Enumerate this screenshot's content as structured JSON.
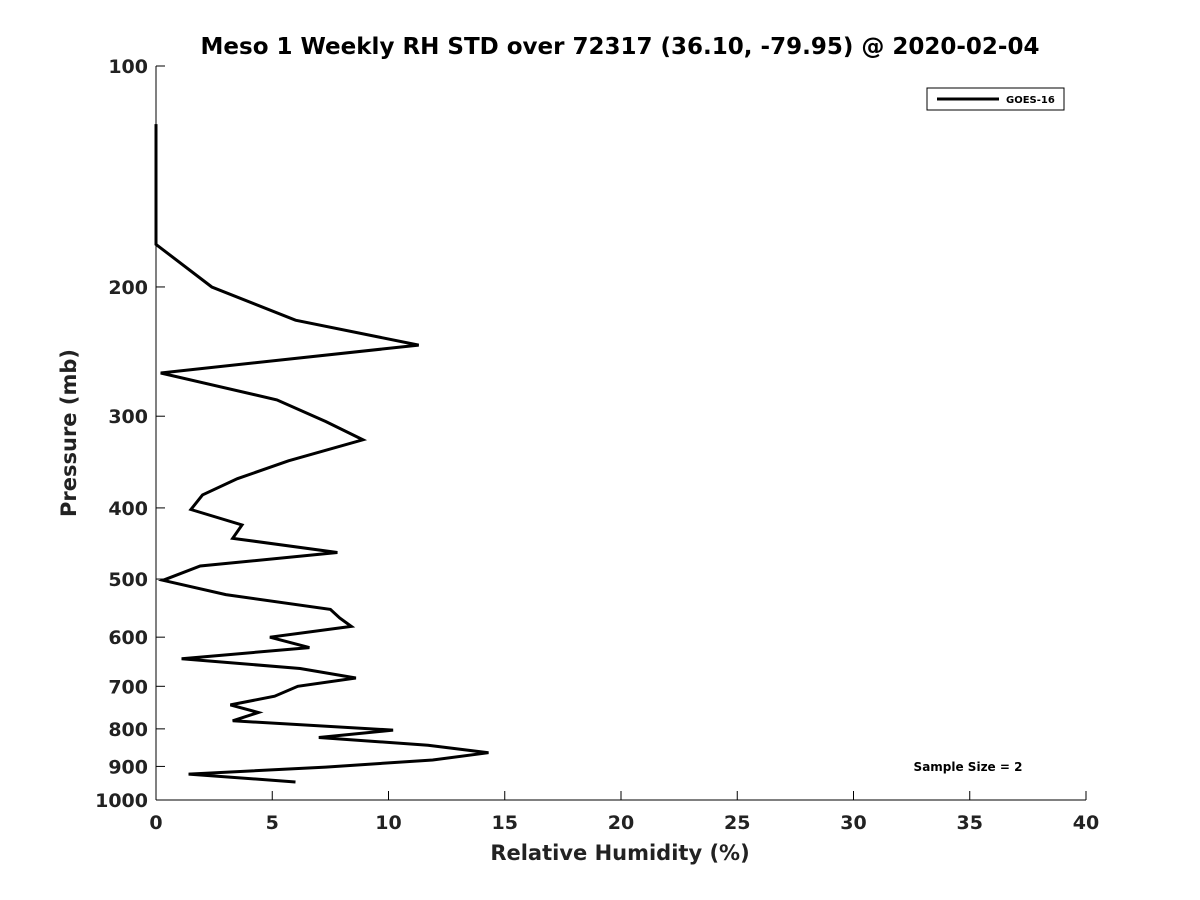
{
  "chart_data": {
    "type": "line",
    "title": "Meso 1 Weekly RH STD over 72317 (36.10, -79.95) @ 2020-02-04",
    "xlabel": "Relative Humidity (%)",
    "ylabel": "Pressure (mb)",
    "xlim": [
      0,
      40
    ],
    "ylim": [
      100,
      1000
    ],
    "y_scale": "log",
    "y_reversed": true,
    "x_ticks": [
      0,
      5,
      10,
      15,
      20,
      25,
      30,
      35,
      40
    ],
    "y_ticks": [
      100,
      200,
      300,
      400,
      500,
      600,
      700,
      800,
      900,
      1000
    ],
    "grid": false,
    "legend_position": "top-right",
    "series": [
      {
        "name": "GOES-16",
        "color": "#000000",
        "points": [
          [
            0.0,
            120
          ],
          [
            0.0,
            150
          ],
          [
            0.0,
            175
          ],
          [
            2.4,
            200
          ],
          [
            6.0,
            222
          ],
          [
            11.3,
            240
          ],
          [
            0.2,
            262
          ],
          [
            5.2,
            285
          ],
          [
            7.3,
            305
          ],
          [
            8.9,
            323
          ],
          [
            5.7,
            345
          ],
          [
            3.5,
            365
          ],
          [
            2.0,
            384
          ],
          [
            1.5,
            402
          ],
          [
            3.7,
            422
          ],
          [
            3.3,
            440
          ],
          [
            7.8,
            460
          ],
          [
            1.9,
            480
          ],
          [
            0.3,
            502
          ],
          [
            3.0,
            525
          ],
          [
            7.5,
            550
          ],
          [
            7.9,
            565
          ],
          [
            8.4,
            580
          ],
          [
            4.9,
            600
          ],
          [
            6.6,
            620
          ],
          [
            1.1,
            642
          ],
          [
            6.2,
            662
          ],
          [
            8.6,
            682
          ],
          [
            6.1,
            700
          ],
          [
            5.1,
            722
          ],
          [
            3.2,
            742
          ],
          [
            4.4,
            760
          ],
          [
            3.3,
            780
          ],
          [
            10.2,
            803
          ],
          [
            7.0,
            822
          ],
          [
            11.7,
            842
          ],
          [
            14.3,
            862
          ],
          [
            11.9,
            882
          ],
          [
            7.3,
            902
          ],
          [
            1.4,
            922
          ],
          [
            6.0,
            945
          ]
        ]
      }
    ],
    "annotations": [
      "Sample Size = 2"
    ]
  }
}
